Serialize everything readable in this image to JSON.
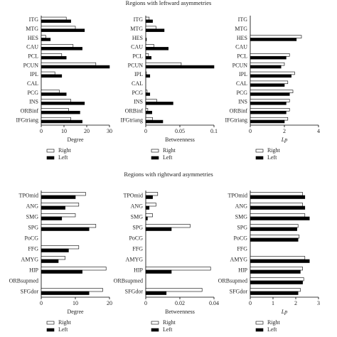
{
  "section_titles": [
    "Regions with leftward asymmetries",
    "Regions with rightward asymmetries"
  ],
  "chart_data": [
    {
      "type": "bar",
      "orientation": "horizontal",
      "x_label": "Degree",
      "xlim": [
        0,
        30
      ],
      "xticks": [
        0,
        10,
        20,
        30
      ],
      "categories": [
        "ITG",
        "MTG",
        "HES",
        "CAU",
        "PCL",
        "PCUN",
        "IPL",
        "CAL",
        "PCG",
        "INS",
        "ORBinf",
        "IFGtriang"
      ],
      "series": [
        {
          "name": "Right",
          "color": "#ffffff",
          "values": [
            11,
            15,
            2,
            14,
            9,
            24,
            6,
            0,
            8,
            13,
            12,
            13
          ]
        },
        {
          "name": "Left",
          "color": "#000000",
          "values": [
            13,
            19,
            4,
            18,
            11,
            30,
            9,
            0,
            11,
            19,
            17,
            18
          ]
        }
      ]
    },
    {
      "type": "bar",
      "orientation": "horizontal",
      "x_label": "Betweenness",
      "xlim": [
        0,
        0.1
      ],
      "xticks": [
        0,
        0.05,
        0.1
      ],
      "categories": [
        "ITG",
        "MTG",
        "HES",
        "CAU",
        "PCL",
        "PCUN",
        "IPL",
        "CAL",
        "PCG",
        "INS",
        "ORBinf",
        "IFGtriang"
      ],
      "series": [
        {
          "name": "Right",
          "color": "#ffffff",
          "values": [
            0.005,
            0.015,
            0,
            0.012,
            0.004,
            0.052,
            0.001,
            0,
            0.002,
            0.016,
            0.003,
            0.01
          ]
        },
        {
          "name": "Left",
          "color": "#000000",
          "values": [
            0.01,
            0.027,
            0.001,
            0.033,
            0.008,
            0.1,
            0.006,
            0,
            0.006,
            0.04,
            0.009,
            0.025
          ]
        }
      ]
    },
    {
      "type": "bar",
      "orientation": "horizontal",
      "x_label": "Lp",
      "xlim": [
        0,
        4
      ],
      "xticks": [
        0,
        2,
        4
      ],
      "categories": [
        "ITG",
        "MTG",
        "HES",
        "CAU",
        "PCL",
        "PCUN",
        "IPL",
        "CAL",
        "PCG",
        "INS",
        "ORBinf",
        "IFGtriang"
      ],
      "series": [
        {
          "name": "Right",
          "color": "#ffffff",
          "values": [
            0,
            0,
            3.0,
            0,
            2.3,
            2.0,
            2.6,
            2.2,
            2.5,
            2.3,
            2.3,
            2.2
          ]
        },
        {
          "name": "Left",
          "color": "#000000",
          "values": [
            0,
            0,
            2.7,
            0,
            2.1,
            1.8,
            2.4,
            2.0,
            2.3,
            2.1,
            2.1,
            2.0
          ]
        }
      ]
    },
    {
      "type": "bar",
      "orientation": "horizontal",
      "x_label": "Degree",
      "xlim": [
        0,
        20
      ],
      "xticks": [
        0,
        10,
        20
      ],
      "categories": [
        "TPOmid",
        "ANG",
        "SMG",
        "SPG",
        "PoCG",
        "FFG",
        "AMYG",
        "HIP",
        "ORBsupmed",
        "SFGdor"
      ],
      "series": [
        {
          "name": "Right",
          "color": "#ffffff",
          "values": [
            13,
            11,
            10,
            16,
            0,
            11,
            7,
            19,
            0,
            18
          ]
        },
        {
          "name": "Left",
          "color": "#000000",
          "values": [
            10,
            7,
            6,
            14,
            0,
            8,
            5,
            12,
            0,
            14
          ]
        }
      ]
    },
    {
      "type": "bar",
      "orientation": "horizontal",
      "x_label": "Betweenness",
      "xlim": [
        0,
        0.04
      ],
      "xticks": [
        0,
        0.02,
        0.04
      ],
      "categories": [
        "TPOmid",
        "ANG",
        "SMG",
        "SPG",
        "PoCG",
        "FFG",
        "AMYG",
        "HIP",
        "ORBsupmed",
        "SFGdor"
      ],
      "series": [
        {
          "name": "Right",
          "color": "#ffffff",
          "values": [
            0.007,
            0.006,
            0.004,
            0.026,
            0,
            0,
            0,
            0.038,
            0,
            0.033
          ]
        },
        {
          "name": "Left",
          "color": "#000000",
          "values": [
            0.004,
            0.002,
            0.001,
            0.015,
            0,
            0,
            0,
            0.015,
            0,
            0.012
          ]
        }
      ]
    },
    {
      "type": "bar",
      "orientation": "horizontal",
      "x_label": "Lp",
      "xlim": [
        0,
        3
      ],
      "xticks": [
        0,
        1,
        2,
        3
      ],
      "categories": [
        "TPOmid",
        "ANG",
        "SMG",
        "SPG",
        "PoCG",
        "FFG",
        "AMYG",
        "HIP",
        "ORBsupmed",
        "SFGdor"
      ],
      "series": [
        {
          "name": "Right",
          "color": "#ffffff",
          "values": [
            2.3,
            2.3,
            2.4,
            2.1,
            2.15,
            0,
            2.4,
            2.3,
            2.35,
            2.2
          ]
        },
        {
          "name": "Left",
          "color": "#000000",
          "values": [
            2.4,
            2.4,
            2.6,
            2.05,
            2.1,
            0,
            2.6,
            2.2,
            2.3,
            2.1
          ]
        }
      ]
    }
  ]
}
